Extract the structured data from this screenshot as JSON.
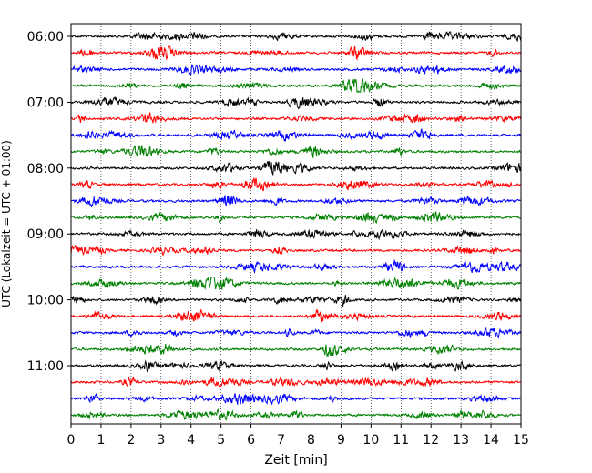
{
  "chart_data": {
    "type": "line",
    "title": "",
    "xlabel": "Zeit  [min]",
    "ylabel": "UTC (Lokalzeit = UTC + 01:00)",
    "xlim": [
      0,
      15
    ],
    "x_ticks": [
      "0",
      "1",
      "2",
      "3",
      "4",
      "5",
      "6",
      "7",
      "8",
      "9",
      "10",
      "11",
      "12",
      "13",
      "14",
      "15"
    ],
    "y_ticks": [
      "06:00",
      "07:00",
      "08:00",
      "09:00",
      "10:00",
      "11:00"
    ],
    "grid": "vertical dotted",
    "series_colors": [
      "#000000",
      "#ff0000",
      "#0000ff",
      "#008000"
    ],
    "traces": [
      {
        "start": "06:00",
        "color": "#000000"
      },
      {
        "start": "06:15",
        "color": "#ff0000"
      },
      {
        "start": "06:30",
        "color": "#0000ff"
      },
      {
        "start": "06:45",
        "color": "#008000"
      },
      {
        "start": "07:00",
        "color": "#000000"
      },
      {
        "start": "07:15",
        "color": "#ff0000"
      },
      {
        "start": "07:30",
        "color": "#0000ff"
      },
      {
        "start": "07:45",
        "color": "#008000"
      },
      {
        "start": "08:00",
        "color": "#000000"
      },
      {
        "start": "08:15",
        "color": "#ff0000"
      },
      {
        "start": "08:30",
        "color": "#0000ff"
      },
      {
        "start": "08:45",
        "color": "#008000"
      },
      {
        "start": "09:00",
        "color": "#000000"
      },
      {
        "start": "09:15",
        "color": "#ff0000"
      },
      {
        "start": "09:30",
        "color": "#0000ff"
      },
      {
        "start": "09:45",
        "color": "#008000"
      },
      {
        "start": "10:00",
        "color": "#000000"
      },
      {
        "start": "10:15",
        "color": "#ff0000"
      },
      {
        "start": "10:30",
        "color": "#0000ff"
      },
      {
        "start": "10:45",
        "color": "#008000"
      },
      {
        "start": "11:00",
        "color": "#000000"
      },
      {
        "start": "11:15",
        "color": "#ff0000"
      },
      {
        "start": "11:30",
        "color": "#0000ff"
      },
      {
        "start": "11:45",
        "color": "#008000"
      }
    ]
  }
}
